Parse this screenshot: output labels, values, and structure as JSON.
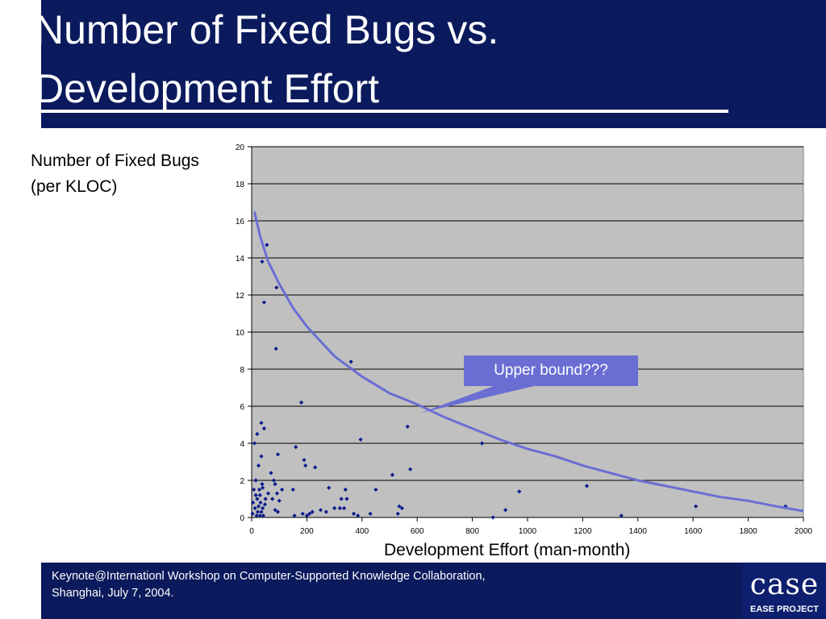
{
  "slide": {
    "title_line1": "Number of Fixed Bugs vs.",
    "title_line2": "Development Effort",
    "footer_line1": "Keynote@Internationl Workshop on Computer-Supported Knowledge Collaboration,",
    "footer_line2": "Shanghai, July 7, 2004.",
    "logo_mark": "case",
    "logo_text": "EASE PROJECT",
    "colors": {
      "header": "#0a1a5c",
      "plot_bg": "#c0c0c0",
      "points": "#0a1a8c",
      "curve": "#6a6ed3"
    }
  },
  "chart_data": {
    "type": "scatter",
    "ylabel_line1": "Number of Fixed Bugs",
    "ylabel_line2": "(per KLOC)",
    "xlabel": "Development Effort (man-month)",
    "xlim": [
      0,
      2000
    ],
    "ylim": [
      0,
      20
    ],
    "x_ticks": [
      0,
      200,
      400,
      600,
      800,
      1000,
      1200,
      1400,
      1600,
      1800,
      2000
    ],
    "y_ticks": [
      0,
      2,
      4,
      6,
      8,
      10,
      12,
      14,
      16,
      18,
      20
    ],
    "grid": "horizontal",
    "points": [
      [
        3,
        0.2
      ],
      [
        5,
        0.8
      ],
      [
        8,
        1.5
      ],
      [
        10,
        4.0
      ],
      [
        12,
        0.5
      ],
      [
        15,
        2.0
      ],
      [
        15,
        1.2
      ],
      [
        18,
        0.1
      ],
      [
        20,
        4.5
      ],
      [
        20,
        1.0
      ],
      [
        22,
        0.3
      ],
      [
        25,
        2.8
      ],
      [
        25,
        0.6
      ],
      [
        28,
        1.5
      ],
      [
        30,
        0.1
      ],
      [
        30,
        1.2
      ],
      [
        32,
        0.8
      ],
      [
        35,
        5.1
      ],
      [
        35,
        3.3
      ],
      [
        35,
        0.3
      ],
      [
        38,
        1.8
      ],
      [
        38,
        13.8
      ],
      [
        40,
        0.5
      ],
      [
        40,
        1.6
      ],
      [
        42,
        0.1
      ],
      [
        45,
        11.6
      ],
      [
        45,
        4.8
      ],
      [
        48,
        0.7
      ],
      [
        50,
        1.0
      ],
      [
        55,
        14.7
      ],
      [
        60,
        1.3
      ],
      [
        70,
        2.4
      ],
      [
        75,
        1.0
      ],
      [
        80,
        2.0
      ],
      [
        85,
        1.8
      ],
      [
        85,
        0.4
      ],
      [
        88,
        9.1
      ],
      [
        90,
        12.4
      ],
      [
        92,
        1.3
      ],
      [
        95,
        3.4
      ],
      [
        95,
        0.3
      ],
      [
        100,
        0.9
      ],
      [
        110,
        1.5
      ],
      [
        150,
        1.5
      ],
      [
        155,
        0.1
      ],
      [
        160,
        3.8
      ],
      [
        180,
        6.2
      ],
      [
        185,
        0.2
      ],
      [
        190,
        3.1
      ],
      [
        195,
        2.8
      ],
      [
        200,
        0.1
      ],
      [
        210,
        0.2
      ],
      [
        220,
        0.3
      ],
      [
        230,
        2.7
      ],
      [
        250,
        0.4
      ],
      [
        270,
        0.3
      ],
      [
        280,
        1.6
      ],
      [
        300,
        0.5
      ],
      [
        320,
        0.5
      ],
      [
        325,
        1.0
      ],
      [
        335,
        0.5
      ],
      [
        340,
        1.5
      ],
      [
        345,
        1.0
      ],
      [
        360,
        8.4
      ],
      [
        370,
        0.2
      ],
      [
        385,
        0.1
      ],
      [
        395,
        4.2
      ],
      [
        430,
        0.2
      ],
      [
        450,
        1.5
      ],
      [
        510,
        2.3
      ],
      [
        530,
        0.2
      ],
      [
        535,
        0.6
      ],
      [
        545,
        0.5
      ],
      [
        565,
        4.9
      ],
      [
        575,
        2.6
      ],
      [
        835,
        4.0
      ],
      [
        875,
        0.0
      ],
      [
        920,
        0.4
      ],
      [
        970,
        1.4
      ],
      [
        1215,
        1.7
      ],
      [
        1340,
        0.1
      ],
      [
        1610,
        0.6
      ],
      [
        1935,
        0.6
      ]
    ],
    "trend_curve": [
      [
        10,
        16.5
      ],
      [
        30,
        15.2
      ],
      [
        60,
        13.8
      ],
      [
        100,
        12.6
      ],
      [
        150,
        11.3
      ],
      [
        200,
        10.3
      ],
      [
        300,
        8.7
      ],
      [
        400,
        7.6
      ],
      [
        500,
        6.7
      ],
      [
        600,
        6.1
      ],
      [
        700,
        5.4
      ],
      [
        800,
        4.8
      ],
      [
        900,
        4.2
      ],
      [
        1000,
        3.7
      ],
      [
        1100,
        3.3
      ],
      [
        1200,
        2.8
      ],
      [
        1300,
        2.4
      ],
      [
        1400,
        2.0
      ],
      [
        1500,
        1.7
      ],
      [
        1600,
        1.4
      ],
      [
        1700,
        1.1
      ],
      [
        1800,
        0.9
      ],
      [
        1900,
        0.6
      ],
      [
        2000,
        0.35
      ]
    ],
    "annotation": {
      "text": "Upper bound???",
      "pointer_to": [
        700,
        5.9
      ]
    }
  }
}
